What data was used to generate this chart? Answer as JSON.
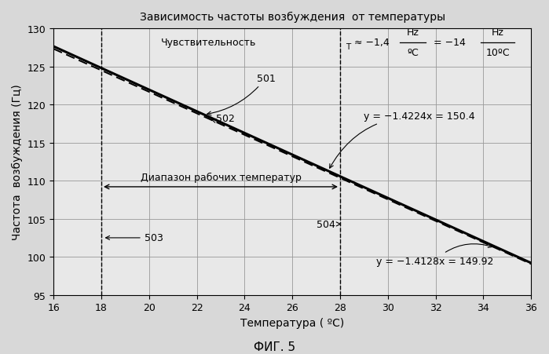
{
  "title": "Зависимость частоты возбуждения  от температуры",
  "xlabel": "Температура ( ºC)",
  "ylabel": "Частота  возбуждения (Гц)",
  "fig_label": "ФИГ. 5",
  "xlim": [
    16,
    36
  ],
  "ylim": [
    95,
    130
  ],
  "xticks": [
    16,
    18,
    20,
    22,
    24,
    26,
    28,
    30,
    32,
    34,
    36
  ],
  "yticks": [
    95,
    100,
    105,
    110,
    115,
    120,
    125,
    130
  ],
  "line1_slope": -1.4224,
  "line1_intercept": 150.4,
  "line2_slope": -1.4128,
  "line2_intercept": 149.92,
  "vline1_x": 18,
  "vline2_x": 28,
  "label_501": "501",
  "label_502": "502",
  "label_503": "503",
  "label_504": "504",
  "line1_eq": "y = −1.4224x = 150.4",
  "line2_eq": "y = −1.4128x = 149.92",
  "working_range_text": "Диапазон рабочих температур",
  "sens_main": "Чувствительность",
  "sens_sub": "T",
  "sens_approx": "≈ −1,4",
  "sens_hz1": "Hz",
  "sens_deg1": "ºC",
  "sens_eq": "= −14",
  "sens_hz2": "Hz",
  "sens_deg2": "10ºC",
  "bg_color": "#d8d8d8",
  "plot_bg": "#e8e8e8"
}
